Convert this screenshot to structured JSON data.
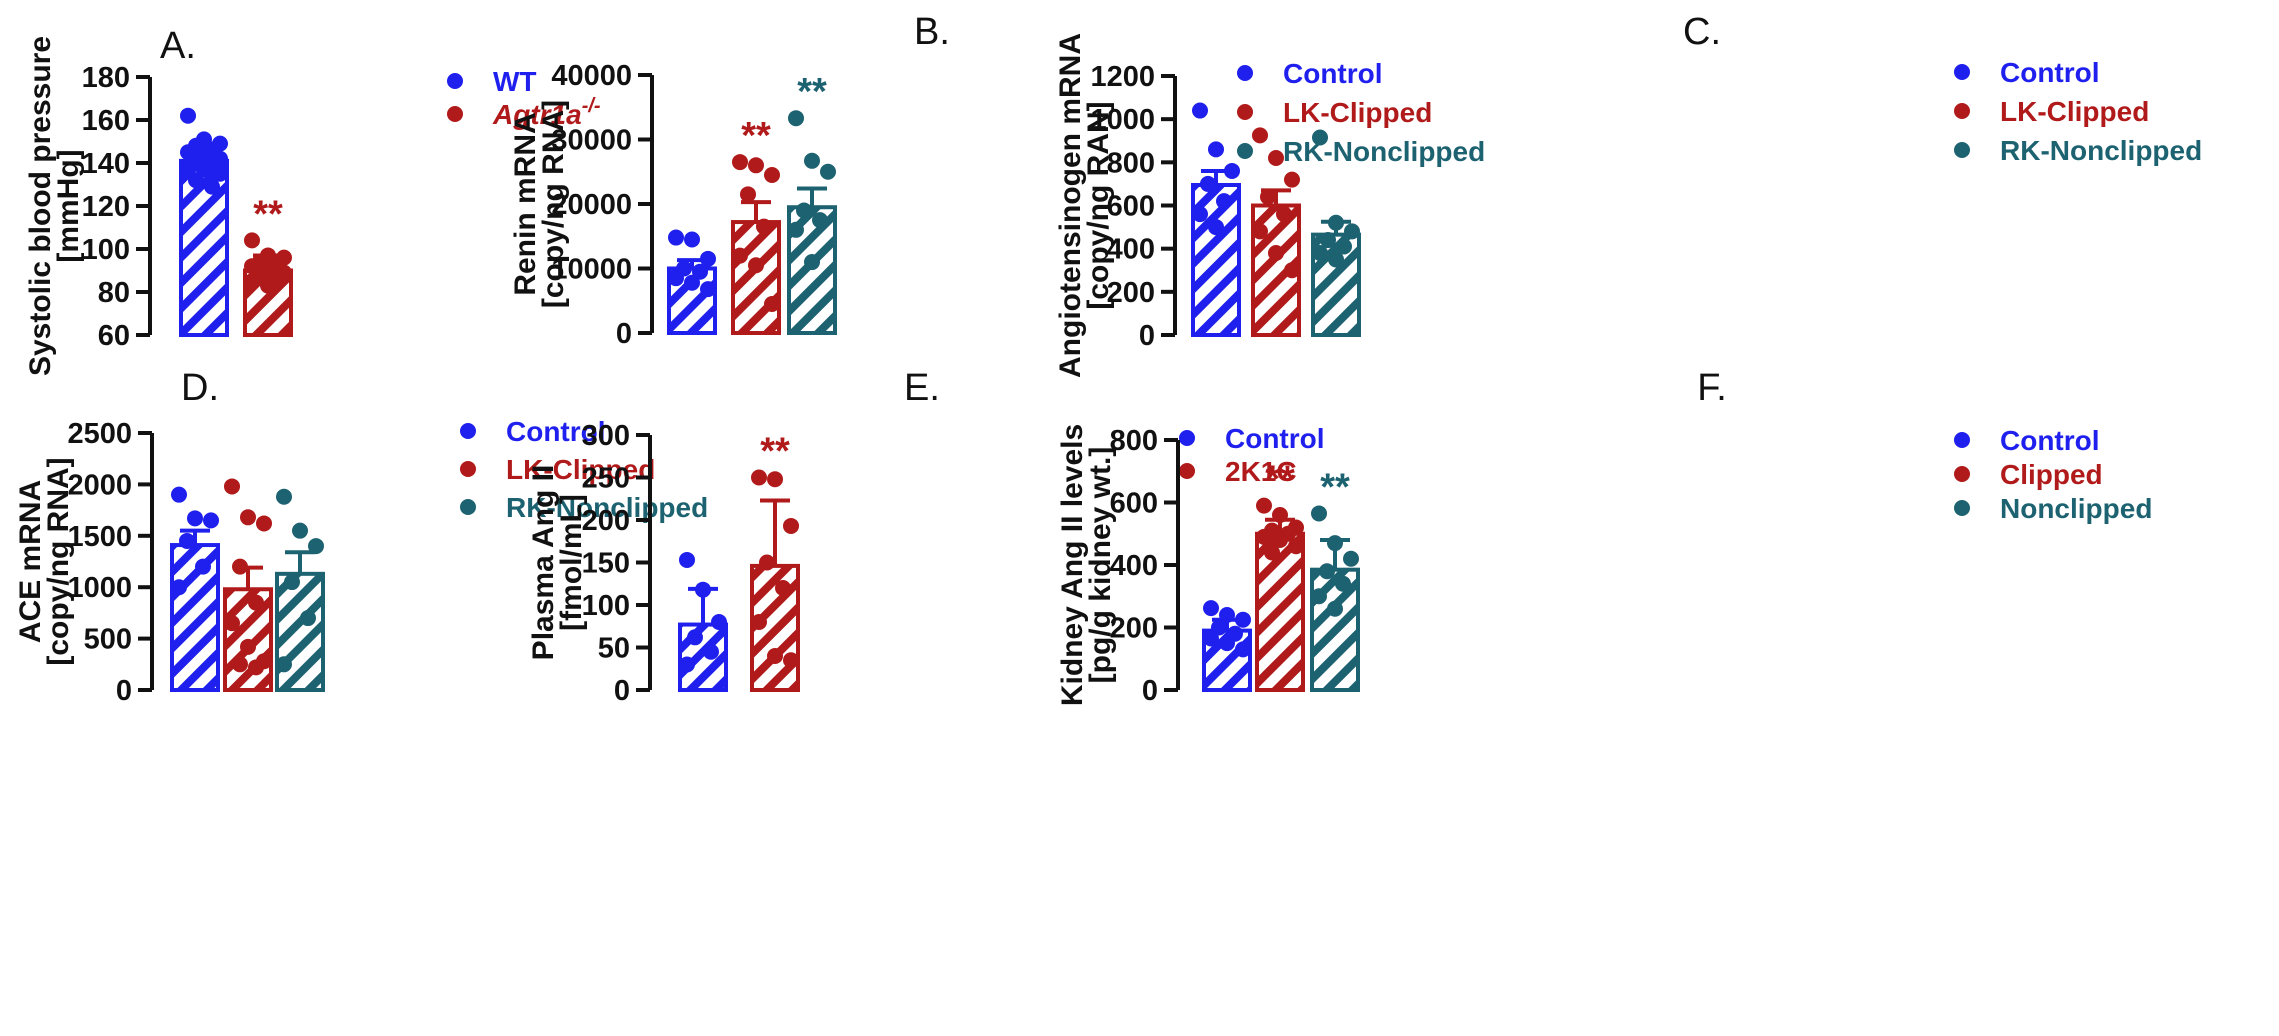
{
  "colors": {
    "blue": "#1f1fee",
    "red": "#b11a1a",
    "teal": "#1d6270",
    "axis": "#111111"
  },
  "chart_data": [
    {
      "id": "A",
      "type": "bar",
      "panel_label": "A.",
      "ylabel": [
        "Systolic blood pressure",
        "[mmHg]"
      ],
      "ylim": [
        60,
        180
      ],
      "yticks": [
        60,
        80,
        100,
        120,
        140,
        160,
        180
      ],
      "legend": [
        {
          "text": "WT",
          "color": "#1f1fee"
        },
        {
          "text": "Agtr1a",
          "sup": "-/-",
          "italic": true,
          "color": "#b11a1a"
        }
      ],
      "series": [
        {
          "name": "WT",
          "color": "#1f1fee",
          "hatch": "blue",
          "mean": 141,
          "err": 8,
          "sig": "",
          "points": [
            162,
            151,
            149,
            148,
            146,
            145,
            143,
            142,
            141,
            140,
            138,
            137,
            135,
            132,
            129
          ]
        },
        {
          "name": "Agtr1a-/-",
          "color": "#b11a1a",
          "hatch": "red",
          "mean": 90,
          "err": 7,
          "sig": "**",
          "points": [
            104,
            97,
            96,
            94,
            93,
            92,
            91,
            89,
            88,
            86,
            85,
            83
          ]
        }
      ]
    },
    {
      "id": "B",
      "type": "bar",
      "panel_label": "B.",
      "ylabel": [
        "Renin mRNA",
        "[copy/ng RNA]"
      ],
      "ylim": [
        0,
        40000
      ],
      "yticks": [
        0,
        10000,
        20000,
        30000,
        40000
      ],
      "legend": [
        {
          "text": "Control",
          "color": "#1f1fee"
        },
        {
          "text": "LK-Clipped",
          "color": "#b11a1a"
        },
        {
          "text": "RK-Nonclipped",
          "color": "#1d6270"
        }
      ],
      "series": [
        {
          "name": "Control",
          "color": "#1f1fee",
          "hatch": "blue",
          "mean": 10000,
          "err": 1300,
          "sig": "",
          "points": [
            14800,
            14500,
            11500,
            10000,
            9500,
            8500,
            7800,
            6800
          ]
        },
        {
          "name": "LK-Clipped",
          "color": "#b11a1a",
          "hatch": "red",
          "mean": 17200,
          "err": 3100,
          "sig": "**",
          "points": [
            26500,
            26000,
            24500,
            21500,
            16500,
            12000,
            10500,
            4500
          ]
        },
        {
          "name": "RK-Nonclipped",
          "color": "#1d6270",
          "hatch": "teal",
          "mean": 19500,
          "err": 2900,
          "sig": "**",
          "points": [
            33300,
            26700,
            25000,
            19000,
            17500,
            16000,
            11000
          ]
        }
      ]
    },
    {
      "id": "C",
      "type": "bar",
      "panel_label": "C.",
      "ylabel": [
        "Angiotensinogen mRNA",
        "[copy/ng RAN]"
      ],
      "ylim": [
        0,
        1200
      ],
      "yticks": [
        0,
        200,
        400,
        600,
        800,
        1000,
        1200
      ],
      "legend": [
        {
          "text": "Control",
          "color": "#1f1fee"
        },
        {
          "text": "LK-Clipped",
          "color": "#b11a1a"
        },
        {
          "text": "RK-Nonclipped",
          "color": "#1d6270"
        }
      ],
      "series": [
        {
          "name": "Control",
          "color": "#1f1fee",
          "hatch": "blue",
          "mean": 695,
          "err": 65,
          "sig": "",
          "points": [
            1040,
            860,
            760,
            700,
            620,
            560,
            500
          ]
        },
        {
          "name": "LK-Clipped",
          "color": "#b11a1a",
          "hatch": "red",
          "mean": 600,
          "err": 70,
          "sig": "",
          "points": [
            925,
            820,
            720,
            640,
            560,
            480,
            380,
            300
          ]
        },
        {
          "name": "RK-Nonclipped",
          "color": "#1d6270",
          "hatch": "teal",
          "mean": 465,
          "err": 60,
          "sig": "",
          "points": [
            915,
            520,
            480,
            440,
            410,
            380,
            350
          ]
        }
      ]
    },
    {
      "id": "D",
      "type": "bar",
      "panel_label": "D.",
      "ylabel": [
        "ACE mRNA",
        "[copy/ng RNA]"
      ],
      "ylim": [
        0,
        2500
      ],
      "yticks": [
        0,
        500,
        1000,
        1500,
        2000,
        2500
      ],
      "legend": [
        {
          "text": "Control",
          "color": "#1f1fee"
        },
        {
          "text": "LK-Clipped",
          "color": "#b11a1a"
        },
        {
          "text": "RK-Nonclipped",
          "color": "#1d6270"
        }
      ],
      "series": [
        {
          "name": "Control",
          "color": "#1f1fee",
          "hatch": "blue",
          "mean": 1410,
          "err": 140,
          "sig": "",
          "points": [
            1900,
            1670,
            1650,
            1450,
            1200,
            1000
          ]
        },
        {
          "name": "LK-Clipped",
          "color": "#b11a1a",
          "hatch": "red",
          "mean": 980,
          "err": 210,
          "sig": "",
          "points": [
            1980,
            1680,
            1620,
            1200,
            850,
            650,
            420,
            280,
            250,
            220
          ]
        },
        {
          "name": "RK-Nonclipped",
          "color": "#1d6270",
          "hatch": "teal",
          "mean": 1130,
          "err": 210,
          "sig": "",
          "points": [
            1880,
            1550,
            1400,
            1050,
            700,
            250
          ]
        }
      ]
    },
    {
      "id": "E",
      "type": "bar",
      "panel_label": "E.",
      "ylabel": [
        "Plasma Ang II",
        "[fmol/mL]"
      ],
      "ylim": [
        0,
        300
      ],
      "yticks": [
        0,
        50,
        100,
        150,
        200,
        250,
        300
      ],
      "legend": [
        {
          "text": "Control",
          "color": "#1f1fee"
        },
        {
          "text": "2K1C",
          "color": "#b11a1a"
        }
      ],
      "series": [
        {
          "name": "Control",
          "color": "#1f1fee",
          "hatch": "blue",
          "mean": 77,
          "err": 42,
          "sig": "",
          "points": [
            153,
            118,
            80,
            62,
            45,
            30
          ]
        },
        {
          "name": "2K1C",
          "color": "#b11a1a",
          "hatch": "red",
          "mean": 146,
          "err": 77,
          "sig": "**",
          "points": [
            250,
            248,
            193,
            150,
            120,
            80,
            40,
            35
          ]
        }
      ]
    },
    {
      "id": "F",
      "type": "bar",
      "panel_label": "F.",
      "ylabel": [
        "Kidney Ang II levels",
        "[pg/g kidney wt.]"
      ],
      "ylim": [
        0,
        800
      ],
      "yticks": [
        0,
        200,
        400,
        600,
        800
      ],
      "legend": [
        {
          "text": "Control",
          "color": "#1f1fee"
        },
        {
          "text": "Clipped",
          "color": "#b11a1a"
        },
        {
          "text": "Nonclipped",
          "color": "#1d6270"
        }
      ],
      "series": [
        {
          "name": "Control",
          "color": "#1f1fee",
          "hatch": "blue",
          "mean": 190,
          "err": 35,
          "sig": "",
          "points": [
            262,
            240,
            225,
            200,
            180,
            165,
            150,
            130
          ]
        },
        {
          "name": "Clipped",
          "color": "#b11a1a",
          "hatch": "red",
          "mean": 500,
          "err": 45,
          "sig": "**",
          "points": [
            590,
            560,
            520,
            510,
            500,
            490,
            480,
            460,
            440
          ]
        },
        {
          "name": "Nonclipped",
          "color": "#1d6270",
          "hatch": "teal",
          "mean": 385,
          "err": 95,
          "sig": "**",
          "points": [
            565,
            470,
            420,
            380,
            340,
            300,
            260
          ]
        }
      ]
    }
  ]
}
